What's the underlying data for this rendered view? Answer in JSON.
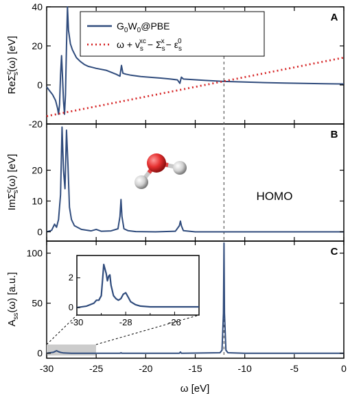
{
  "colors": {
    "g0w0": "#2f4b7c",
    "line": "#d62728",
    "frame": "#000000",
    "dashed": "#555555",
    "shade": "#cccccc"
  },
  "xaxis": {
    "label": "ω [eV]",
    "min": -30,
    "max": 0,
    "ticks": [
      "-30",
      "-25",
      "-20",
      "-15",
      "-10",
      "-5",
      "0"
    ]
  },
  "homo": {
    "label": "HOMO",
    "energy": -12.1
  },
  "legend": {
    "g0w0": {
      "main": "G",
      "s1": "0",
      "m2": "W",
      "s2": "0",
      "tail": "@PBE"
    },
    "line": {
      "a": "ω + v",
      "sub1": "s",
      "sup1": "xc",
      "b": "− Σ",
      "sub2": "s",
      "sup2": "x",
      "c": "− ε",
      "sub3": "s",
      "sup3": "0"
    }
  },
  "panels": [
    {
      "letter": "A",
      "ylabel": {
        "pre": "ReΣ",
        "sup": "c",
        "sub": "s",
        "post": "(ω) [eV]"
      },
      "ymin": -20,
      "ymax": 40,
      "ticks": [
        "-20",
        "0",
        "20",
        "40"
      ]
    },
    {
      "letter": "B",
      "ylabel": {
        "pre": "ImΣ",
        "sup": "c",
        "sub": "s",
        "post": "(ω) [eV]"
      },
      "ymin": -3,
      "ymax": 35,
      "ticks": [
        "0",
        "10",
        "20"
      ]
    },
    {
      "letter": "C",
      "ylabel": {
        "pre": "A",
        "sup": "",
        "sub": "ss",
        "post": "(ω) [a.u.]"
      },
      "ymin": -5,
      "ymax": 112,
      "ticks": [
        "0",
        "50",
        "100"
      ]
    }
  ],
  "inset": {
    "xmin": -30,
    "xmax": -25,
    "ymin": -0.5,
    "ymax": 3.5,
    "xticks": [
      "-30",
      "-28",
      "-26"
    ],
    "yticks": [
      "0",
      "2"
    ]
  },
  "chart_data": [
    {
      "type": "line",
      "panel": "A",
      "ylim": [
        -20,
        40
      ],
      "xlim": [
        -30,
        0
      ],
      "series": [
        {
          "name": "G0W0@PBE",
          "x": [
            -30,
            -29.7,
            -29.4,
            -29.1,
            -28.9,
            -28.8,
            -28.7,
            -28.6,
            -28.5,
            -28.4,
            -28.3,
            -28.2,
            -28.1,
            -28.0,
            -27.9,
            -27.8,
            -27.6,
            -27.4,
            -27.2,
            -27.0,
            -26.6,
            -26.2,
            -25.8,
            -25.4,
            -25.0,
            -24.0,
            -23.0,
            -22.6,
            -22.45,
            -22.3,
            -22.0,
            -21.5,
            -20.5,
            -19.5,
            -18.5,
            -17.5,
            -16.8,
            -16.55,
            -16.4,
            -16.2,
            -15.5,
            -14.0,
            -12.1,
            -10.0,
            -8.0,
            -6.0,
            -4.0,
            -2.0,
            0
          ],
          "y": [
            -1,
            -3,
            -5,
            -8,
            -12,
            -15,
            -10,
            5,
            15,
            4,
            -8,
            -15,
            -5,
            20,
            40,
            28,
            21,
            18,
            16,
            14,
            12,
            10.5,
            9.5,
            9,
            8.5,
            7.5,
            5.5,
            4.5,
            10,
            6,
            5.5,
            5,
            4.3,
            3.9,
            3.5,
            3,
            2.6,
            0.8,
            4,
            3,
            2.8,
            2.3,
            1.8,
            1.5,
            1.2,
            1.0,
            0.8,
            0.6,
            0.5
          ]
        },
        {
          "name": "ω + v_s^xc − Σ_s^x − ε_s^0",
          "x": [
            -30,
            0
          ],
          "y": [
            -16,
            14
          ]
        }
      ]
    },
    {
      "type": "line",
      "panel": "B",
      "ylim": [
        -3,
        35
      ],
      "xlim": [
        -30,
        0
      ],
      "series": [
        {
          "name": "G0W0@PBE",
          "x": [
            -30,
            -29.5,
            -29.2,
            -29.0,
            -28.8,
            -28.6,
            -28.45,
            -28.3,
            -28.15,
            -28.0,
            -27.85,
            -27.7,
            -27.5,
            -27.2,
            -26.5,
            -25.5,
            -25.0,
            -24.5,
            -23.5,
            -22.8,
            -22.6,
            -22.5,
            -22.4,
            -22.2,
            -21.8,
            -21.0,
            -19.0,
            -17.0,
            -16.6,
            -16.5,
            -16.4,
            -16.2,
            -15.0,
            -12.1,
            -10,
            -5,
            0
          ],
          "y": [
            0,
            0.5,
            2.5,
            1.5,
            4,
            12,
            34,
            20,
            14,
            33,
            22,
            8,
            4,
            2,
            0.8,
            0.3,
            0.8,
            0.2,
            0.3,
            1,
            5,
            10.5,
            5,
            1,
            0.4,
            0.1,
            0,
            0.2,
            2,
            3.5,
            2,
            0.4,
            0,
            0,
            0,
            0,
            0
          ]
        }
      ]
    },
    {
      "type": "line",
      "panel": "C",
      "ylim": [
        -5,
        112
      ],
      "xlim": [
        -30,
        0
      ],
      "series": [
        {
          "name": "G0W0@PBE",
          "x": [
            -30,
            -29.3,
            -29.0,
            -28.8,
            -28.6,
            -28.3,
            -27.5,
            -22.6,
            -22.5,
            -22.4,
            -16.6,
            -16.5,
            -16.4,
            -12.5,
            -12.3,
            -12.15,
            -12.1,
            -12.05,
            -11.9,
            -11.7,
            -10,
            0
          ],
          "y": [
            0,
            1,
            2.5,
            1.5,
            0.8,
            0.3,
            0,
            0,
            0.5,
            0,
            0,
            1.2,
            0,
            0.5,
            3,
            40,
            110,
            40,
            3,
            0.5,
            0,
            0
          ]
        }
      ]
    },
    {
      "type": "line",
      "panel": "C-inset",
      "xlim": [
        -30,
        -25
      ],
      "ylim": [
        -0.5,
        3.5
      ],
      "series": [
        {
          "name": "G0W0@PBE",
          "x": [
            -30,
            -29.6,
            -29.3,
            -29.2,
            -29.1,
            -29.0,
            -28.9,
            -28.8,
            -28.75,
            -28.7,
            -28.65,
            -28.6,
            -28.5,
            -28.4,
            -28.3,
            -28.2,
            -28.1,
            -28.0,
            -27.9,
            -27.8,
            -27.6,
            -27.4,
            -27.0,
            -26.5,
            -26.0,
            -25.5,
            -25.0
          ],
          "y": [
            0,
            0.1,
            0.3,
            0.5,
            0.5,
            0.8,
            2.9,
            2.3,
            1.8,
            2.1,
            2.2,
            1.5,
            0.8,
            0.6,
            0.5,
            0.6,
            0.9,
            1.0,
            0.7,
            0.4,
            0.2,
            0.1,
            0.05,
            0.05,
            0.05,
            0.05,
            0.05
          ]
        }
      ]
    }
  ]
}
